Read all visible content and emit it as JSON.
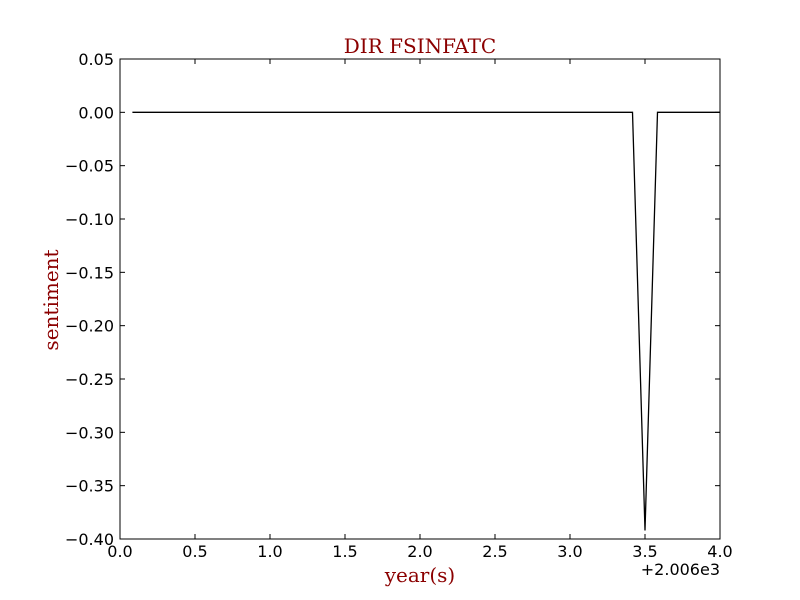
{
  "chart_data": {
    "type": "line",
    "title": "DIR FSINFATC",
    "xlabel": "year(s)",
    "ylabel": "sentiment",
    "x_offset_label": "+2.006e3",
    "xlim": [
      0.0,
      4.0
    ],
    "ylim": [
      -0.4,
      0.05
    ],
    "xticks": [
      0.0,
      0.5,
      1.0,
      1.5,
      2.0,
      2.5,
      3.0,
      3.5,
      4.0
    ],
    "xtick_labels": [
      "0.0",
      "0.5",
      "1.0",
      "1.5",
      "2.0",
      "2.5",
      "3.0",
      "3.5",
      "4.0"
    ],
    "yticks": [
      0.05,
      0.0,
      -0.05,
      -0.1,
      -0.15,
      -0.2,
      -0.25,
      -0.3,
      -0.35,
      -0.4
    ],
    "ytick_labels": [
      "0.05",
      "0.00",
      "−0.05",
      "−0.10",
      "−0.15",
      "−0.20",
      "−0.25",
      "−0.30",
      "−0.35",
      "−0.40"
    ],
    "grid": false,
    "series": [
      {
        "x": [
          0.083,
          3.417,
          3.5,
          3.583,
          3.917,
          4.0
        ],
        "y": [
          0.0,
          0.0,
          -0.392,
          0.0,
          0.0,
          0.0
        ],
        "color": "#000000"
      }
    ],
    "colors": {
      "title": "#8b0000",
      "axis_label": "#8b0000",
      "line": "#000000"
    }
  }
}
